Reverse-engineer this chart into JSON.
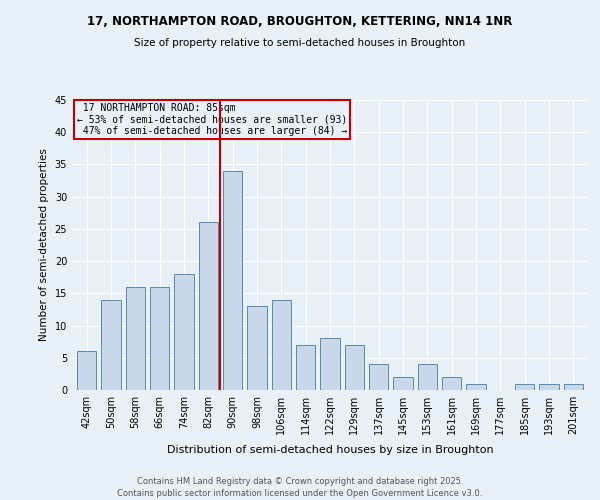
{
  "title1": "17, NORTHAMPTON ROAD, BROUGHTON, KETTERING, NN14 1NR",
  "title2": "Size of property relative to semi-detached houses in Broughton",
  "xlabel": "Distribution of semi-detached houses by size in Broughton",
  "ylabel": "Number of semi-detached properties",
  "footnote1": "Contains HM Land Registry data © Crown copyright and database right 2025.",
  "footnote2": "Contains public sector information licensed under the Open Government Licence v3.0.",
  "categories": [
    "42sqm",
    "50sqm",
    "58sqm",
    "66sqm",
    "74sqm",
    "82sqm",
    "90sqm",
    "98sqm",
    "106sqm",
    "114sqm",
    "122sqm",
    "129sqm",
    "137sqm",
    "145sqm",
    "153sqm",
    "161sqm",
    "169sqm",
    "177sqm",
    "185sqm",
    "193sqm",
    "201sqm"
  ],
  "values": [
    6,
    14,
    16,
    16,
    18,
    26,
    34,
    13,
    14,
    7,
    8,
    7,
    4,
    2,
    4,
    2,
    1,
    0,
    1,
    1,
    1
  ],
  "bar_color": "#c8d8e8",
  "bar_edge_color": "#5a8ab0",
  "highlight_label": "17 NORTHAMPTON ROAD: 85sqm",
  "pct_smaller": "53% of semi-detached houses are smaller (93)",
  "pct_larger": "47% of semi-detached houses are larger (84)",
  "vline_color": "#c00000",
  "vline_x": 5.5,
  "ylim": [
    0,
    45
  ],
  "yticks": [
    0,
    5,
    10,
    15,
    20,
    25,
    30,
    35,
    40,
    45
  ],
  "box_text_color": "#000000",
  "box_edge_color": "#c00000",
  "background_color": "#e8f0f8",
  "grid_color": "#ffffff",
  "footnote_color": "#555555"
}
